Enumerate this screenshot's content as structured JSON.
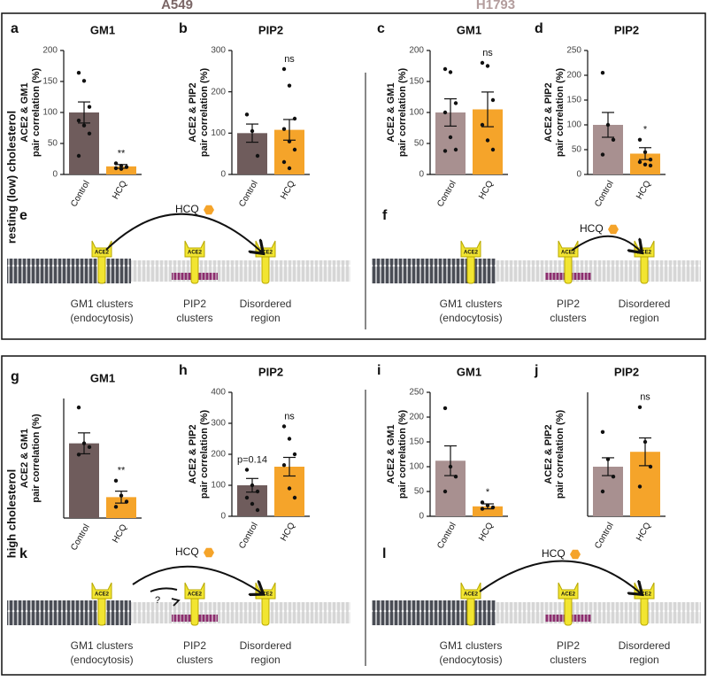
{
  "headers": [
    "A549",
    "H1793"
  ],
  "row_labels": [
    "resting (low) cholesterol",
    "high cholesterol"
  ],
  "chart_data": [
    {
      "type": "bar",
      "panel": "a",
      "title": "GM1",
      "ylabel": [
        "ACE2 & GM1",
        "pair correlation (%)"
      ],
      "categories": [
        "Control",
        "HCQ"
      ],
      "colors": [
        "#6f5c5c",
        "#f5a42a"
      ],
      "values": [
        100,
        13
      ],
      "errors": [
        17,
        3
      ],
      "points": [
        [
          164,
          151,
          109,
          87,
          79,
          66,
          30
        ],
        [
          18,
          14,
          12,
          10,
          9
        ]
      ],
      "sig_labels": [
        null,
        "**"
      ],
      "ylim": [
        0,
        200
      ],
      "yticks": [
        0,
        50,
        100,
        150,
        200
      ]
    },
    {
      "type": "bar",
      "panel": "b",
      "title": "PIP2",
      "ylabel": [
        "ACE2 & PIP2",
        "pair correlation (%)"
      ],
      "categories": [
        "Control",
        "HCQ"
      ],
      "colors": [
        "#6f5c5c",
        "#f5a42a"
      ],
      "values": [
        100,
        108
      ],
      "errors": [
        22,
        25
      ],
      "points": [
        [
          145,
          105,
          45
        ],
        [
          255,
          215,
          135,
          110,
          80,
          60,
          30,
          15
        ]
      ],
      "sig_labels": [
        null,
        "ns"
      ],
      "ylim": [
        0,
        300
      ],
      "yticks": [
        0,
        100,
        200,
        300
      ]
    },
    {
      "type": "bar",
      "panel": "c",
      "title": "GM1",
      "ylabel": [
        "ACE2 & GM1",
        "pair correlation (%)"
      ],
      "categories": [
        "Control",
        "HCQ"
      ],
      "colors": [
        "#a89090",
        "#f5a42a"
      ],
      "values": [
        100,
        105
      ],
      "errors": [
        22,
        28
      ],
      "points": [
        [
          170,
          165,
          115,
          100,
          60,
          40,
          38
        ],
        [
          180,
          175,
          120,
          80,
          55,
          40
        ]
      ],
      "sig_labels": [
        null,
        "ns"
      ],
      "ylim": [
        0,
        200
      ],
      "yticks": [
        0,
        50,
        100,
        150,
        200
      ]
    },
    {
      "type": "bar",
      "panel": "d",
      "title": "PIP2",
      "ylabel": [
        "ACE2 & PIP2",
        "pair correlation (%)"
      ],
      "categories": [
        "Control",
        "HCQ"
      ],
      "colors": [
        "#a89090",
        "#f5a42a"
      ],
      "values": [
        100,
        42
      ],
      "errors": [
        25,
        12
      ],
      "points": [
        [
          205,
          100,
          70,
          40
        ],
        [
          70,
          45,
          30,
          25,
          20,
          18
        ]
      ],
      "sig_labels": [
        null,
        "*"
      ],
      "ylim": [
        0,
        250
      ],
      "yticks": [
        0,
        50,
        100,
        150,
        200,
        250
      ]
    },
    {
      "type": "bar",
      "panel": "g",
      "title": "GM1",
      "ylabel": [
        "ACE2 & GM1",
        "pair correlation (%)"
      ],
      "categories": [
        "Control",
        "HCQ"
      ],
      "colors": [
        "#6f5c5c",
        "#f5a42a"
      ],
      "values": [
        100,
        28
      ],
      "errors": [
        14,
        8
      ],
      "points": [
        [
          148,
          100,
          95,
          85
        ],
        [
          50,
          30,
          22,
          15
        ]
      ],
      "sig_labels": [
        null,
        "**"
      ],
      "ylim": [
        0,
        160
      ],
      "yticks": []
    },
    {
      "type": "bar",
      "panel": "h",
      "title": "PIP2",
      "ylabel": [
        "ACE2 & PIP2",
        "pair correlation (%)"
      ],
      "categories": [
        "Control",
        "HCQ"
      ],
      "colors": [
        "#6f5c5c",
        "#f5a42a"
      ],
      "values": [
        100,
        160
      ],
      "errors": [
        22,
        30
      ],
      "points": [
        [
          150,
          100,
          80,
          60,
          40,
          20
        ],
        [
          290,
          250,
          200,
          165,
          90,
          60
        ]
      ],
      "sig_labels": [
        "p=0.14",
        "ns"
      ],
      "ylim": [
        0,
        400
      ],
      "yticks": [
        0,
        100,
        200,
        300,
        400
      ]
    },
    {
      "type": "bar",
      "panel": "i",
      "title": "GM1",
      "ylabel": [
        "ACE2 & GM1",
        "pair correlation (%)"
      ],
      "categories": [
        "Control",
        "HCQ"
      ],
      "colors": [
        "#a89090",
        "#f5a42a"
      ],
      "values": [
        112,
        20
      ],
      "errors": [
        30,
        5
      ],
      "points": [
        [
          218,
          100,
          80,
          50
        ],
        [
          28,
          22,
          18,
          15
        ]
      ],
      "sig_labels": [
        null,
        "*"
      ],
      "ylim": [
        0,
        250
      ],
      "yticks": [
        0,
        50,
        100,
        150,
        200,
        250
      ]
    },
    {
      "type": "bar",
      "panel": "j",
      "title": "PIP2",
      "ylabel": [
        "ACE2 & PIP2",
        "pair correlation (%)"
      ],
      "categories": [
        "Control",
        "HCQ"
      ],
      "colors": [
        "#a89090",
        "#f5a42a"
      ],
      "values": [
        100,
        130
      ],
      "errors": [
        18,
        28
      ],
      "points": [
        [
          170,
          115,
          80,
          50
        ],
        [
          220,
          150,
          100,
          60
        ]
      ],
      "sig_labels": [
        null,
        "ns"
      ],
      "ylim": [
        0,
        250
      ],
      "yticks": []
    }
  ],
  "diagrams": [
    {
      "panel": "e",
      "drug": "HCQ",
      "receptor": "ACE2",
      "gm1": [
        "GM1 clusters",
        "(endocytosis)"
      ],
      "pip2": [
        "PIP2",
        "clusters"
      ],
      "disordered": [
        "Disordered",
        "region"
      ]
    },
    {
      "panel": "f",
      "drug": "HCQ",
      "receptor": "ACE2",
      "gm1": [
        "GM1 clusters",
        "(endocytosis)"
      ],
      "pip2": [
        "PIP2",
        "clusters"
      ],
      "disordered": [
        "Disordered",
        "region"
      ]
    },
    {
      "panel": "k",
      "drug": "HCQ",
      "receptor": "ACE2",
      "gm1": [
        "GM1 clusters",
        "(endocytosis)"
      ],
      "pip2": [
        "PIP2",
        "clusters"
      ],
      "disordered": [
        "Disordered",
        "region"
      ],
      "question": "?"
    },
    {
      "panel": "l",
      "drug": "HCQ",
      "receptor": "ACE2",
      "gm1": [
        "GM1 clusters",
        "(endocytosis)"
      ],
      "pip2": [
        "PIP2",
        "clusters"
      ],
      "disordered": [
        "Disordered",
        "region"
      ]
    }
  ]
}
